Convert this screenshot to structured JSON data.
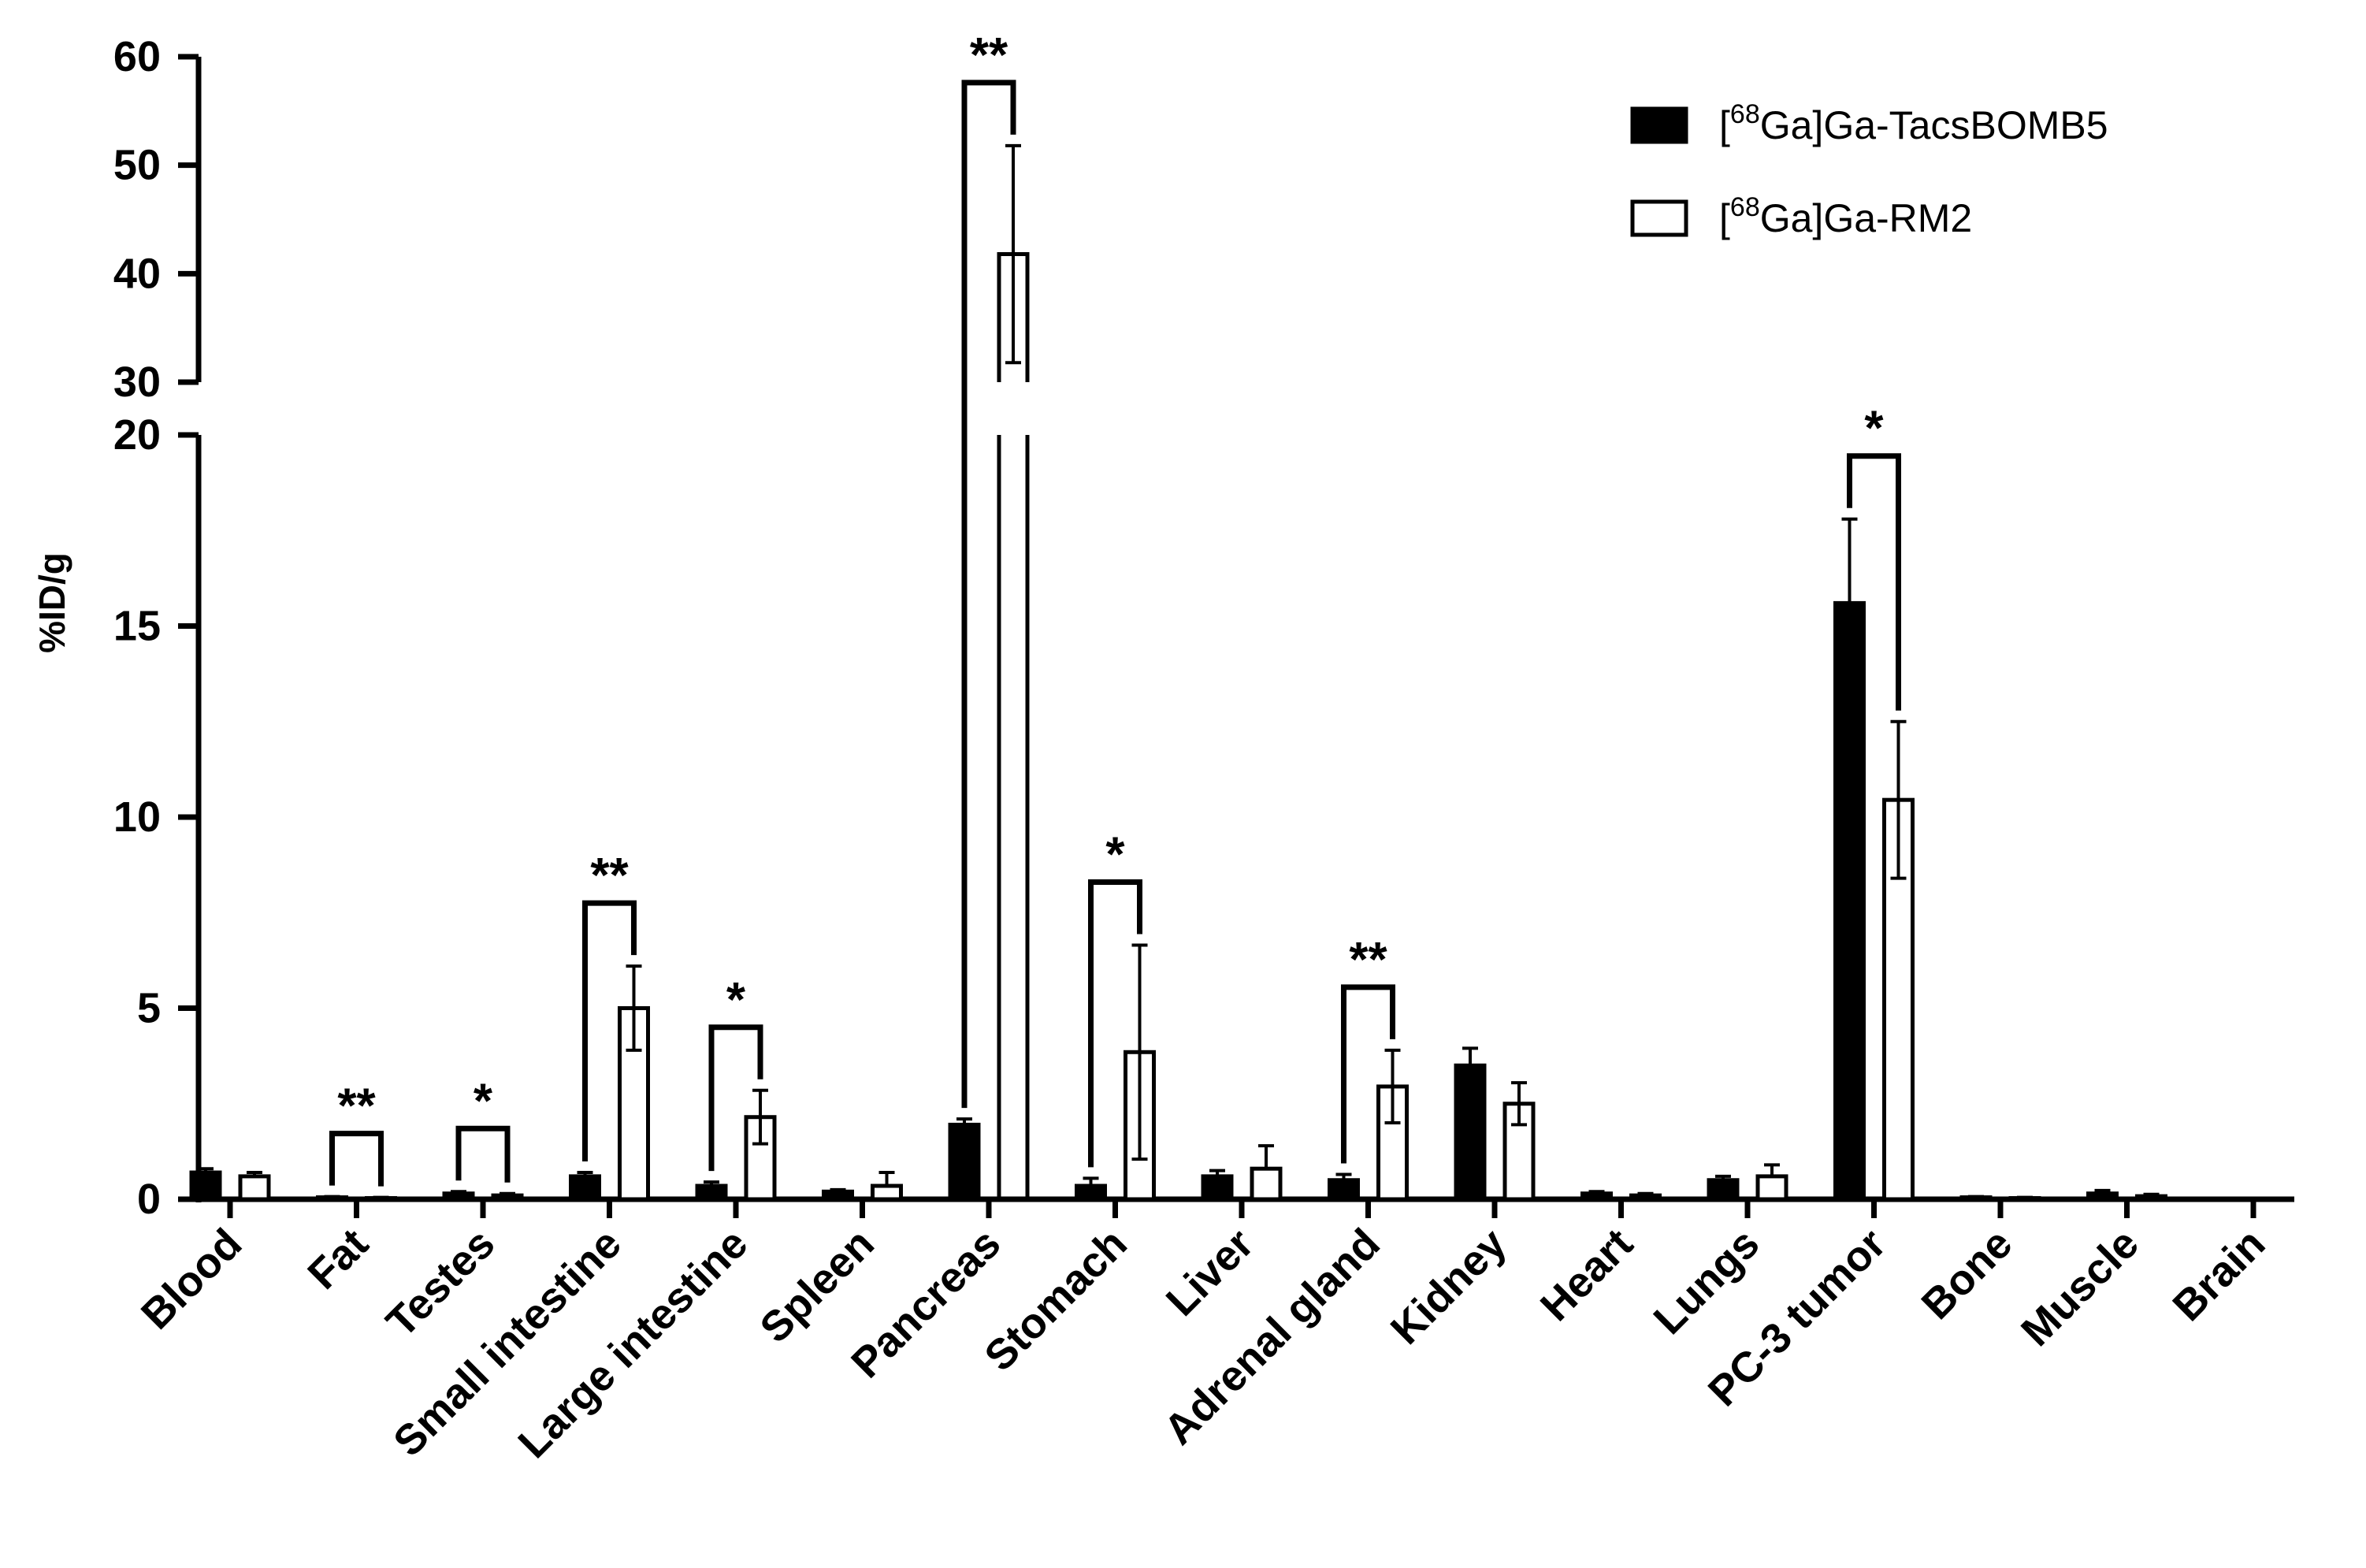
{
  "chart_data": {
    "type": "bar",
    "ylabel": "%ID/g",
    "y_axis_broken": true,
    "y_lower_range": [
      0,
      20
    ],
    "y_upper_range": [
      30,
      60
    ],
    "y_lower_ticks": [
      "0",
      "5",
      "10",
      "15",
      "20"
    ],
    "y_upper_ticks": [
      "30",
      "40",
      "50",
      "60"
    ],
    "legend_position": "top-right",
    "categories": [
      "Blood",
      "Fat",
      "Testes",
      "Small intestine",
      "Large intestine",
      "Spleen",
      "Pancreas",
      "Stomach",
      "Liver",
      "Adrenal gland",
      "Kidney",
      "Heart",
      "Lungs",
      "PC-3 tumor",
      "Bone",
      "Muscle",
      "Brain"
    ],
    "series": [
      {
        "name": "[68Ga]Ga-TacsBOMB5",
        "legend_prefix": "[",
        "legend_sup": "68",
        "legend_suffix": "Ga]Ga-TacsBOMB5",
        "fill": "#000000",
        "values": [
          0.7,
          0.05,
          0.15,
          0.6,
          0.35,
          0.2,
          1.95,
          0.35,
          0.6,
          0.5,
          3.5,
          0.15,
          0.5,
          15.6,
          0.05,
          0.15,
          0.02
        ],
        "errors": [
          0.1,
          0.02,
          0.05,
          0.1,
          0.1,
          0.05,
          0.15,
          0.2,
          0.15,
          0.15,
          0.45,
          0.05,
          0.1,
          2.2,
          0.02,
          0.08,
          0.01
        ]
      },
      {
        "name": "[68Ga]Ga-RM2",
        "legend_prefix": "[",
        "legend_sup": "68",
        "legend_suffix": "Ga]Ga-RM2",
        "fill": "#ffffff",
        "values": [
          0.6,
          0.03,
          0.1,
          5.0,
          2.15,
          0.35,
          41.8,
          3.85,
          0.8,
          2.95,
          2.5,
          0.1,
          0.6,
          10.45,
          0.03,
          0.08,
          0.02
        ],
        "errors": [
          0.1,
          0.02,
          0.05,
          1.1,
          0.7,
          0.35,
          10.0,
          2.8,
          0.6,
          0.95,
          0.55,
          0.05,
          0.3,
          2.05,
          0.02,
          0.05,
          0.01
        ]
      }
    ],
    "significance": [
      {
        "category": "Fat",
        "label": "**"
      },
      {
        "category": "Testes",
        "label": "*"
      },
      {
        "category": "Small intestine",
        "label": "**"
      },
      {
        "category": "Large intestine",
        "label": "*"
      },
      {
        "category": "Pancreas",
        "label": "**"
      },
      {
        "category": "Stomach",
        "label": "*"
      },
      {
        "category": "Adrenal gland",
        "label": "**"
      },
      {
        "category": "PC-3 tumor",
        "label": "*"
      }
    ]
  }
}
